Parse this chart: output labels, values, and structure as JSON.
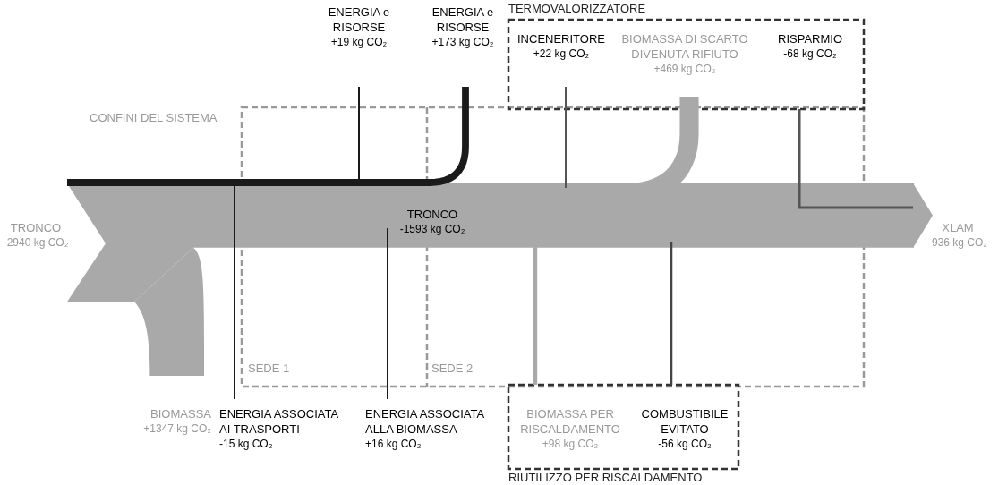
{
  "chart_data": {
    "type": "other",
    "categories": [
      "TRONCO",
      "BIOMASSA",
      "ENERGIA ASSOCIATA\nAI TRASPORTI",
      "ENERGIA e\nRISORSE",
      "TRONCO",
      "ENERGIA ASSOCIATA\nALLA BIOMASSA",
      "ENERGIA e\nRISORSE",
      "INCENERITORE",
      "BIOMASSA PER\nRISCALDAMENTO",
      "BIOMASSA DI SCARTO\nDIVENUTA RIFIUTO",
      "COMBUSTIBILE\nEVITATO",
      "RISPARMIO",
      "XLAM"
    ],
    "values": [
      -2940,
      1347,
      -15,
      19,
      -1593,
      16,
      173,
      22,
      98,
      469,
      -56,
      -68,
      -936
    ],
    "value_labels": [
      "-2940 kg CO₂",
      "+1347 kg CO₂",
      "-15 kg CO₂",
      "+19 kg CO₂",
      "-1593 kg CO₂",
      "+16 kg CO₂",
      "+173 kg CO₂",
      "+22 kg CO₂",
      "+98 kg CO₂",
      "+469 kg CO₂",
      "-56 kg CO₂",
      "-68 kg CO₂",
      "-936 kg CO₂"
    ],
    "colors": [
      "#a9a9a9",
      "#a9a9a9",
      "#1a1a1a",
      "#1a1a1a",
      "#a9a9a9",
      "#1a1a1a",
      "#1a1a1a",
      "#555555",
      "#a9a9a9",
      "#a9a9a9",
      "#444444",
      "#555555",
      "#a9a9a9"
    ],
    "annotations": [
      "CONFINI DEL SISTEMA",
      "SEDE 1",
      "SEDE 2",
      "TERMOVALORIZZATORE",
      "RIUTILIZZO PER RISCALDAMENTO"
    ]
  }
}
